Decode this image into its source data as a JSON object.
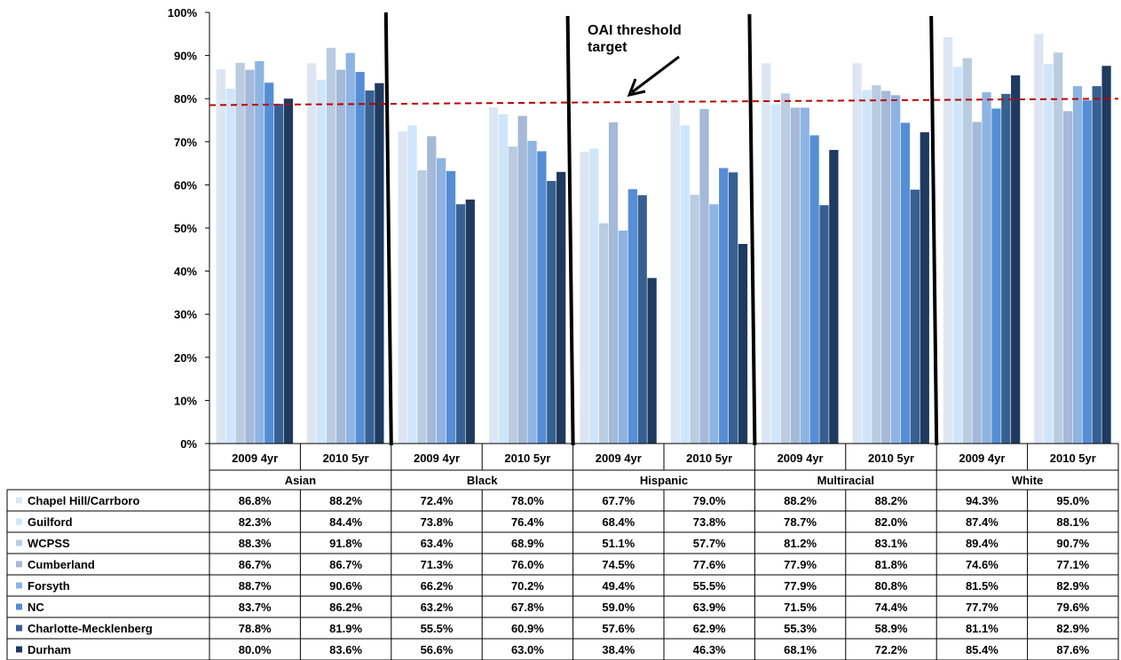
{
  "chart_data": {
    "type": "bar",
    "ylim": [
      0,
      100
    ],
    "yticks": [
      "0%",
      "10%",
      "20%",
      "30%",
      "40%",
      "50%",
      "60%",
      "70%",
      "80%",
      "90%",
      "100%"
    ],
    "groups": [
      "Asian",
      "Black",
      "Hispanic",
      "Multiracial",
      "White"
    ],
    "subcategories": [
      "2009 4yr",
      "2010  5yr"
    ],
    "series": [
      {
        "name": "Chapel Hill/Carrboro",
        "color": "#dce6f2",
        "values": [
          86.8,
          88.2,
          72.4,
          78.0,
          67.7,
          79.0,
          88.2,
          88.2,
          94.3,
          95.0
        ],
        "labels": [
          "86.8%",
          "88.2%",
          "72.4%",
          "78.0%",
          "67.7%",
          "79.0%",
          "88.2%",
          "88.2%",
          "94.3%",
          "95.0%"
        ]
      },
      {
        "name": "Guilford",
        "color": "#cfe6fa",
        "values": [
          82.3,
          84.4,
          73.8,
          76.4,
          68.4,
          73.8,
          78.7,
          82.0,
          87.4,
          88.1
        ],
        "labels": [
          "82.3%",
          "84.4%",
          "73.8%",
          "76.4%",
          "68.4%",
          "73.8%",
          "78.7%",
          "82.0%",
          "87.4%",
          "88.1%"
        ]
      },
      {
        "name": "WCPSS",
        "color": "#b9cce0",
        "values": [
          88.3,
          91.8,
          63.4,
          68.9,
          51.1,
          57.7,
          81.2,
          83.1,
          89.4,
          90.7
        ],
        "labels": [
          "88.3%",
          "91.8%",
          "63.4%",
          "68.9%",
          "51.1%",
          "57.7%",
          "81.2%",
          "83.1%",
          "89.4%",
          "90.7%"
        ]
      },
      {
        "name": "Cumberland",
        "color": "#a5b9d8",
        "values": [
          86.7,
          86.7,
          71.3,
          76.0,
          74.5,
          77.6,
          77.9,
          81.8,
          74.6,
          77.1
        ],
        "labels": [
          "86.7%",
          "86.7%",
          "71.3%",
          "76.0%",
          "74.5%",
          "77.6%",
          "77.9%",
          "81.8%",
          "74.6%",
          "77.1%"
        ]
      },
      {
        "name": "Forsyth",
        "color": "#8db4e2",
        "values": [
          88.7,
          90.6,
          66.2,
          70.2,
          49.4,
          55.5,
          77.9,
          80.8,
          81.5,
          82.9
        ],
        "labels": [
          "88.7%",
          "90.6%",
          "66.2%",
          "70.2%",
          "49.4%",
          "55.5%",
          "77.9%",
          "80.8%",
          "81.5%",
          "82.9%"
        ]
      },
      {
        "name": "NC",
        "color": "#558ed5",
        "values": [
          83.7,
          86.2,
          63.2,
          67.8,
          59.0,
          63.9,
          71.5,
          74.4,
          77.7,
          79.6
        ],
        "labels": [
          "83.7%",
          "86.2%",
          "63.2%",
          "67.8%",
          "59.0%",
          "63.9%",
          "71.5%",
          "74.4%",
          "77.7%",
          "79.6%"
        ]
      },
      {
        "name": "Charlotte-Mecklenberg",
        "color": "#376092",
        "values": [
          78.8,
          81.9,
          55.5,
          60.9,
          57.6,
          62.9,
          55.3,
          58.9,
          81.1,
          82.9
        ],
        "labels": [
          "78.8%",
          "81.9%",
          "55.5%",
          "60.9%",
          "57.6%",
          "62.9%",
          "55.3%",
          "58.9%",
          "81.1%",
          "82.9%"
        ]
      },
      {
        "name": "Durham",
        "color": "#1f3a5f",
        "values": [
          80.0,
          83.6,
          56.6,
          63.0,
          38.4,
          46.3,
          68.1,
          72.2,
          85.4,
          87.6
        ],
        "labels": [
          "80.0%",
          "83.6%",
          "56.6%",
          "63.0%",
          "38.4%",
          "46.3%",
          "68.1%",
          "72.2%",
          "85.4%",
          "87.6%"
        ]
      }
    ],
    "threshold": {
      "y_left": 78.5,
      "y_right": 80.0,
      "color": "#c00000"
    },
    "annotation": {
      "line1": "OAI threshold",
      "line2": "target"
    },
    "grid": false,
    "legend": "table-left"
  }
}
